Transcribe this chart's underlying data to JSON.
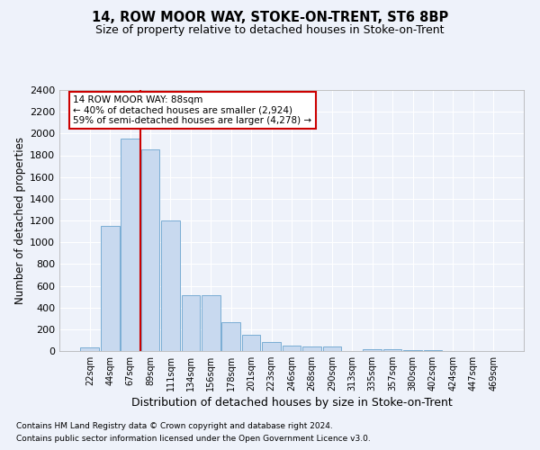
{
  "title": "14, ROW MOOR WAY, STOKE-ON-TRENT, ST6 8BP",
  "subtitle": "Size of property relative to detached houses in Stoke-on-Trent",
  "xlabel": "Distribution of detached houses by size in Stoke-on-Trent",
  "ylabel": "Number of detached properties",
  "categories": [
    "22sqm",
    "44sqm",
    "67sqm",
    "89sqm",
    "111sqm",
    "134sqm",
    "156sqm",
    "178sqm",
    "201sqm",
    "223sqm",
    "246sqm",
    "268sqm",
    "290sqm",
    "313sqm",
    "335sqm",
    "357sqm",
    "380sqm",
    "402sqm",
    "424sqm",
    "447sqm",
    "469sqm"
  ],
  "values": [
    30,
    1150,
    1950,
    1850,
    1200,
    510,
    510,
    265,
    150,
    80,
    50,
    40,
    40,
    0,
    20,
    20,
    5,
    5,
    0,
    0,
    0
  ],
  "bar_color": "#c8d9ef",
  "bar_edge_color": "#7aadd4",
  "vline_x_index": 2.5,
  "annotation_line1": "14 ROW MOOR WAY: 88sqm",
  "annotation_line2": "← 40% of detached houses are smaller (2,924)",
  "annotation_line3": "59% of semi-detached houses are larger (4,278) →",
  "annotation_box_color": "#ffffff",
  "annotation_box_edge": "#cc0000",
  "vline_color": "#cc0000",
  "ylim": [
    0,
    2400
  ],
  "yticks": [
    0,
    200,
    400,
    600,
    800,
    1000,
    1200,
    1400,
    1600,
    1800,
    2000,
    2200,
    2400
  ],
  "footnote1": "Contains HM Land Registry data © Crown copyright and database right 2024.",
  "footnote2": "Contains public sector information licensed under the Open Government Licence v3.0.",
  "background_color": "#eef2fa",
  "plot_bg_color": "#eef2fa",
  "grid_color": "#ffffff",
  "title_fontsize": 10.5,
  "subtitle_fontsize": 9,
  "xlabel_fontsize": 9,
  "ylabel_fontsize": 8.5
}
